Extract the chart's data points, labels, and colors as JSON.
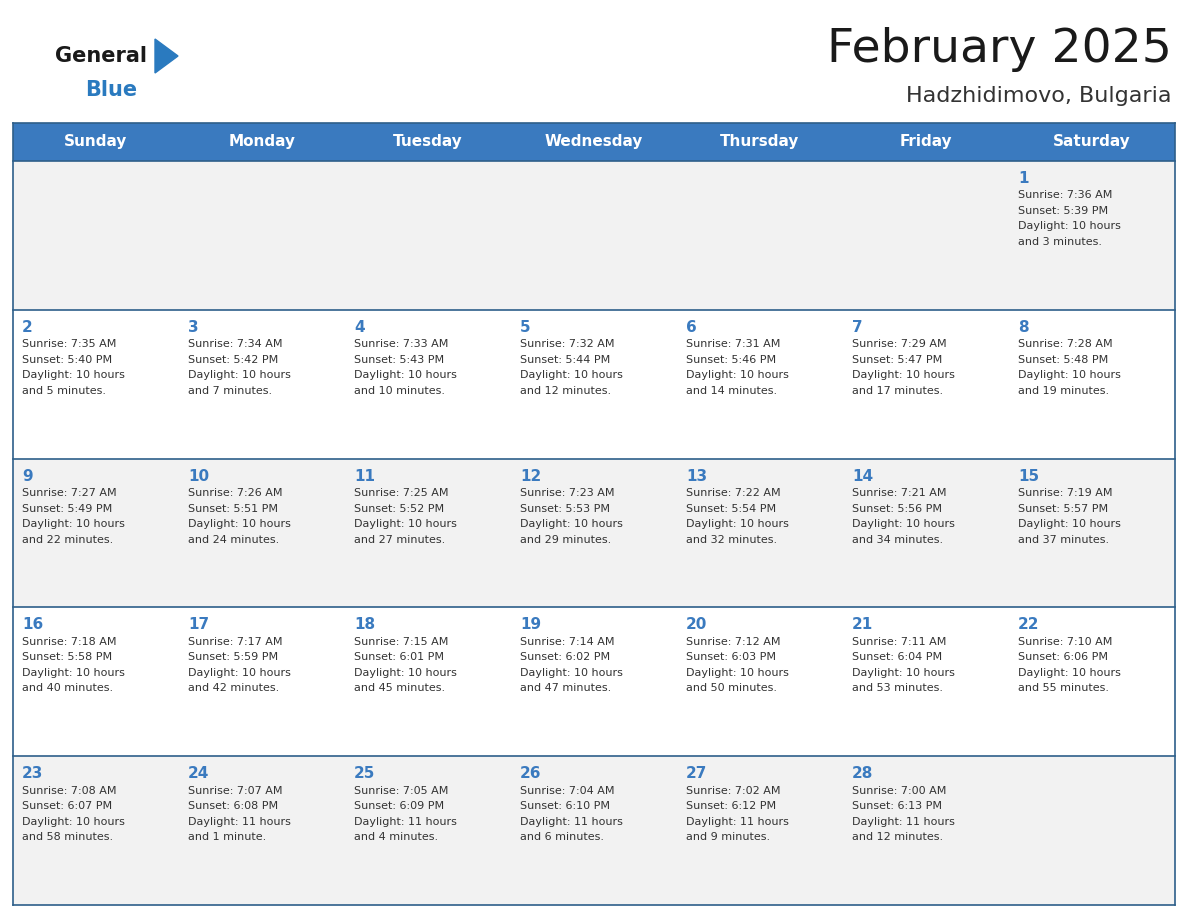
{
  "title": "February 2025",
  "subtitle": "Hadzhidimovo, Bulgaria",
  "header_bg": "#3a7abf",
  "header_text_color": "#ffffff",
  "cell_bg_even": "#f2f2f2",
  "cell_bg_odd": "#ffffff",
  "row_divider_color": "#2e5f8a",
  "outer_border_color": "#2e5f8a",
  "day_names": [
    "Sunday",
    "Monday",
    "Tuesday",
    "Wednesday",
    "Thursday",
    "Friday",
    "Saturday"
  ],
  "title_color": "#1a1a1a",
  "subtitle_color": "#333333",
  "day_number_color": "#3a7abf",
  "cell_text_color": "#333333",
  "logo_general_color": "#1a1a1a",
  "logo_blue_color": "#2a7abf",
  "calendar_data": [
    [
      null,
      null,
      null,
      null,
      null,
      null,
      {
        "day": "1",
        "sunrise": "7:36 AM",
        "sunset": "5:39 PM",
        "daylight": "10 hours and 3 minutes."
      }
    ],
    [
      {
        "day": "2",
        "sunrise": "7:35 AM",
        "sunset": "5:40 PM",
        "daylight": "10 hours and 5 minutes."
      },
      {
        "day": "3",
        "sunrise": "7:34 AM",
        "sunset": "5:42 PM",
        "daylight": "10 hours and 7 minutes."
      },
      {
        "day": "4",
        "sunrise": "7:33 AM",
        "sunset": "5:43 PM",
        "daylight": "10 hours and 10 minutes."
      },
      {
        "day": "5",
        "sunrise": "7:32 AM",
        "sunset": "5:44 PM",
        "daylight": "10 hours and 12 minutes."
      },
      {
        "day": "6",
        "sunrise": "7:31 AM",
        "sunset": "5:46 PM",
        "daylight": "10 hours and 14 minutes."
      },
      {
        "day": "7",
        "sunrise": "7:29 AM",
        "sunset": "5:47 PM",
        "daylight": "10 hours and 17 minutes."
      },
      {
        "day": "8",
        "sunrise": "7:28 AM",
        "sunset": "5:48 PM",
        "daylight": "10 hours and 19 minutes."
      }
    ],
    [
      {
        "day": "9",
        "sunrise": "7:27 AM",
        "sunset": "5:49 PM",
        "daylight": "10 hours and 22 minutes."
      },
      {
        "day": "10",
        "sunrise": "7:26 AM",
        "sunset": "5:51 PM",
        "daylight": "10 hours and 24 minutes."
      },
      {
        "day": "11",
        "sunrise": "7:25 AM",
        "sunset": "5:52 PM",
        "daylight": "10 hours and 27 minutes."
      },
      {
        "day": "12",
        "sunrise": "7:23 AM",
        "sunset": "5:53 PM",
        "daylight": "10 hours and 29 minutes."
      },
      {
        "day": "13",
        "sunrise": "7:22 AM",
        "sunset": "5:54 PM",
        "daylight": "10 hours and 32 minutes."
      },
      {
        "day": "14",
        "sunrise": "7:21 AM",
        "sunset": "5:56 PM",
        "daylight": "10 hours and 34 minutes."
      },
      {
        "day": "15",
        "sunrise": "7:19 AM",
        "sunset": "5:57 PM",
        "daylight": "10 hours and 37 minutes."
      }
    ],
    [
      {
        "day": "16",
        "sunrise": "7:18 AM",
        "sunset": "5:58 PM",
        "daylight": "10 hours and 40 minutes."
      },
      {
        "day": "17",
        "sunrise": "7:17 AM",
        "sunset": "5:59 PM",
        "daylight": "10 hours and 42 minutes."
      },
      {
        "day": "18",
        "sunrise": "7:15 AM",
        "sunset": "6:01 PM",
        "daylight": "10 hours and 45 minutes."
      },
      {
        "day": "19",
        "sunrise": "7:14 AM",
        "sunset": "6:02 PM",
        "daylight": "10 hours and 47 minutes."
      },
      {
        "day": "20",
        "sunrise": "7:12 AM",
        "sunset": "6:03 PM",
        "daylight": "10 hours and 50 minutes."
      },
      {
        "day": "21",
        "sunrise": "7:11 AM",
        "sunset": "6:04 PM",
        "daylight": "10 hours and 53 minutes."
      },
      {
        "day": "22",
        "sunrise": "7:10 AM",
        "sunset": "6:06 PM",
        "daylight": "10 hours and 55 minutes."
      }
    ],
    [
      {
        "day": "23",
        "sunrise": "7:08 AM",
        "sunset": "6:07 PM",
        "daylight": "10 hours and 58 minutes."
      },
      {
        "day": "24",
        "sunrise": "7:07 AM",
        "sunset": "6:08 PM",
        "daylight": "11 hours and 1 minute."
      },
      {
        "day": "25",
        "sunrise": "7:05 AM",
        "sunset": "6:09 PM",
        "daylight": "11 hours and 4 minutes."
      },
      {
        "day": "26",
        "sunrise": "7:04 AM",
        "sunset": "6:10 PM",
        "daylight": "11 hours and 6 minutes."
      },
      {
        "day": "27",
        "sunrise": "7:02 AM",
        "sunset": "6:12 PM",
        "daylight": "11 hours and 9 minutes."
      },
      {
        "day": "28",
        "sunrise": "7:00 AM",
        "sunset": "6:13 PM",
        "daylight": "11 hours and 12 minutes."
      },
      null
    ]
  ]
}
